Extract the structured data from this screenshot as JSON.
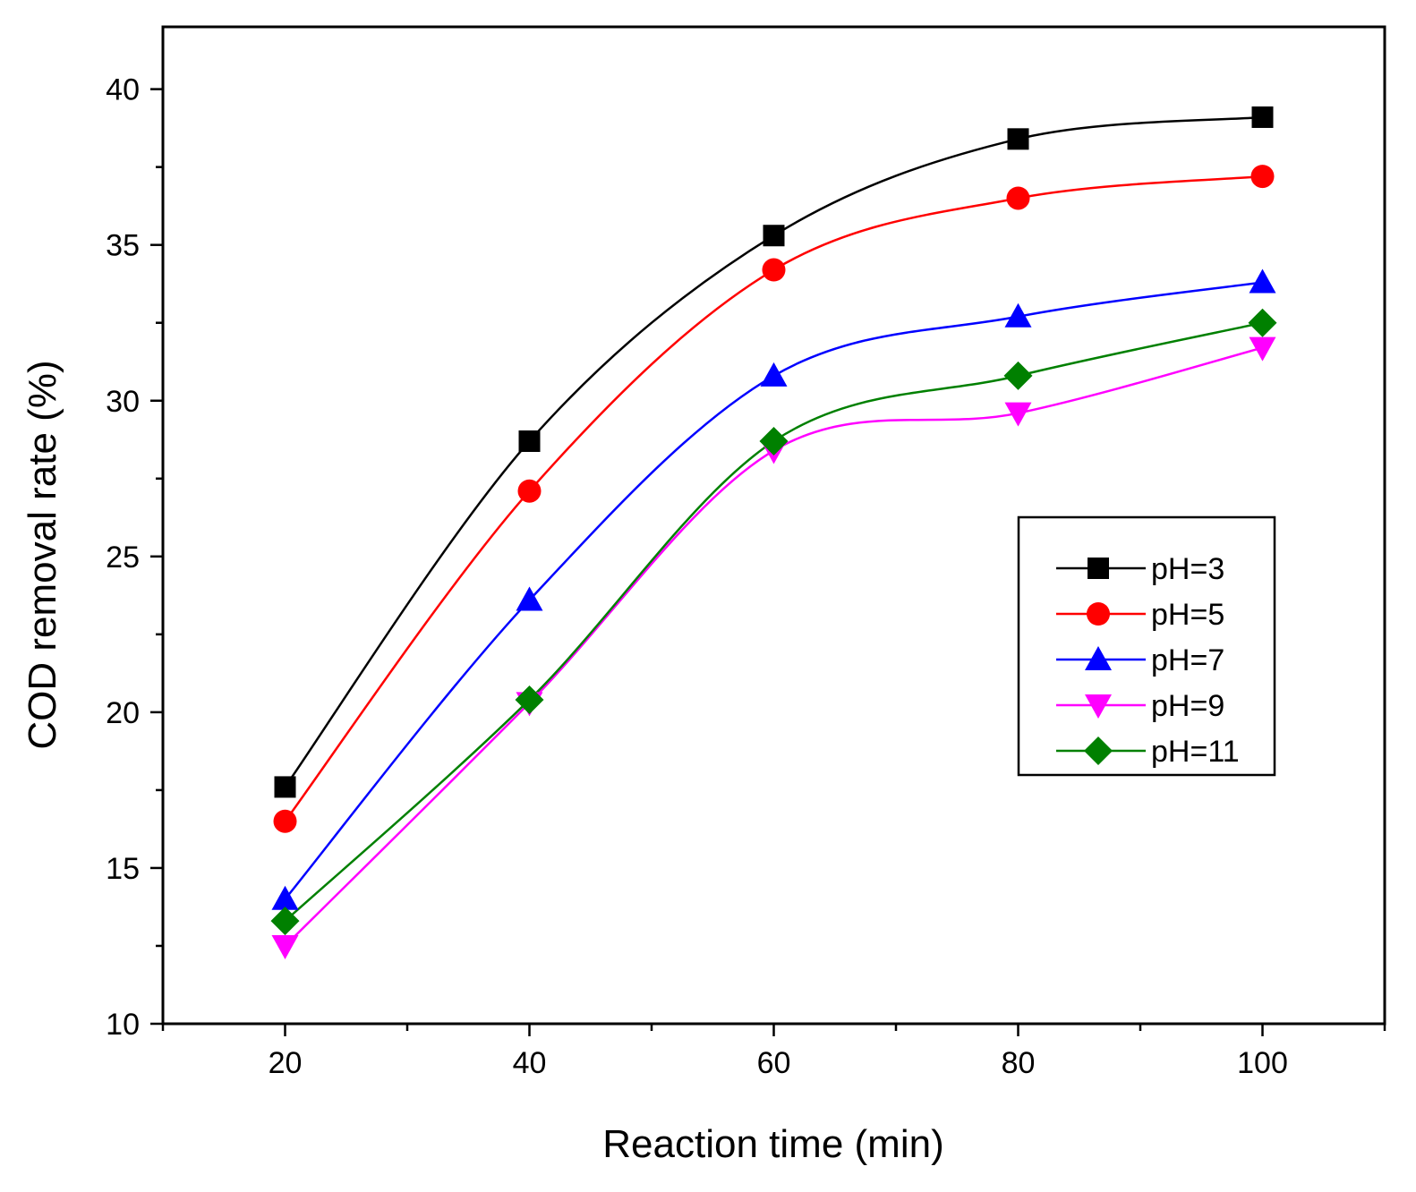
{
  "chart_data": {
    "type": "line",
    "title": "",
    "xlabel": "Reaction time (min)",
    "ylabel": "COD removal rate (%)",
    "xlim": [
      10,
      110
    ],
    "ylim": [
      10,
      42
    ],
    "x_ticks": [
      20,
      40,
      60,
      80,
      100
    ],
    "x_minor_ticks": [
      10,
      30,
      50,
      70,
      90,
      110
    ],
    "y_ticks": [
      10,
      15,
      20,
      25,
      30,
      35,
      40
    ],
    "y_minor_ticks": [
      12.5,
      17.5,
      22.5,
      27.5,
      32.5,
      37.5
    ],
    "x_tick_labels": [
      "20",
      "40",
      "60",
      "80",
      "100"
    ],
    "y_tick_labels": [
      "10",
      "15",
      "20",
      "25",
      "30",
      "35",
      "40"
    ],
    "legend_position": "right-middle",
    "grid": false,
    "x": [
      20,
      40,
      60,
      80,
      100
    ],
    "series": [
      {
        "name": "pH=3",
        "color": "#000000",
        "marker": "square",
        "values": [
          17.6,
          28.7,
          35.3,
          38.4,
          39.1
        ]
      },
      {
        "name": "pH=5",
        "color": "#ff0000",
        "marker": "circle",
        "values": [
          16.5,
          27.1,
          34.2,
          36.5,
          37.2
        ]
      },
      {
        "name": "pH=7",
        "color": "#0000ff",
        "marker": "triangle-up",
        "values": [
          14.0,
          23.6,
          30.8,
          32.7,
          33.8
        ]
      },
      {
        "name": "pH=9",
        "color": "#ff00ff",
        "marker": "triangle-down",
        "values": [
          12.5,
          20.3,
          28.4,
          29.6,
          31.7
        ]
      },
      {
        "name": "pH=11",
        "color": "#008000",
        "marker": "diamond",
        "values": [
          13.3,
          20.4,
          28.7,
          30.8,
          32.5
        ]
      }
    ]
  }
}
